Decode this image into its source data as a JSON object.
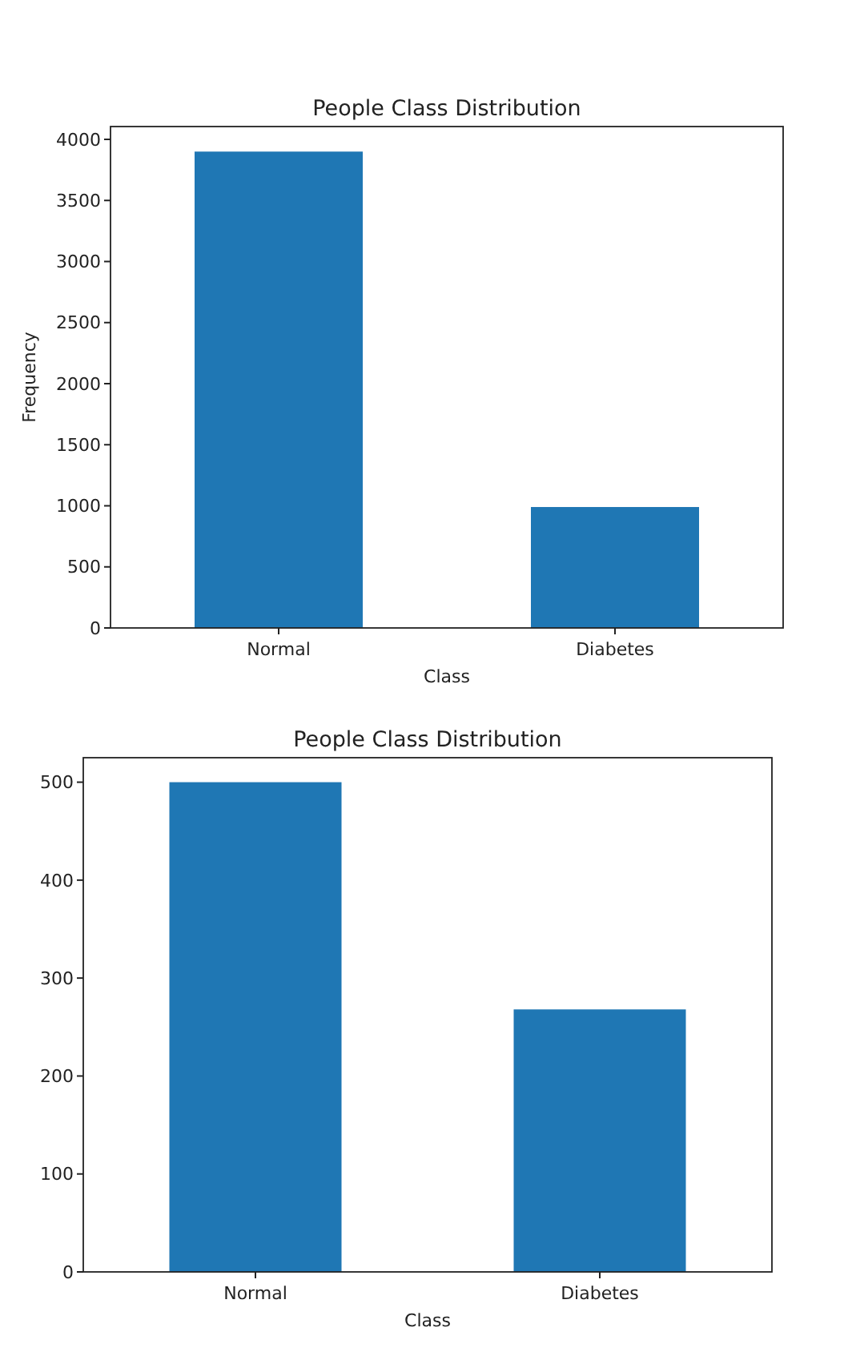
{
  "chart_data": [
    {
      "type": "bar",
      "title": "People Class Distribution",
      "xlabel": "Class",
      "ylabel": "Frequency",
      "categories": [
        "Normal",
        "Diabetes"
      ],
      "values": [
        3900,
        990
      ],
      "color": "#1f77b4",
      "ylim": [
        0,
        4105
      ],
      "yticks": [
        0,
        500,
        1000,
        1500,
        2000,
        2500,
        3000,
        3500,
        4000
      ],
      "grid": false
    },
    {
      "type": "bar",
      "title": "People Class Distribution",
      "xlabel": "Class",
      "categories": [
        "Normal",
        "Diabetes"
      ],
      "values": [
        500,
        268
      ],
      "color": "#1f77b4",
      "ylim": [
        0,
        525
      ],
      "yticks": [
        0,
        100,
        200,
        300,
        400,
        500
      ],
      "grid": false
    }
  ]
}
